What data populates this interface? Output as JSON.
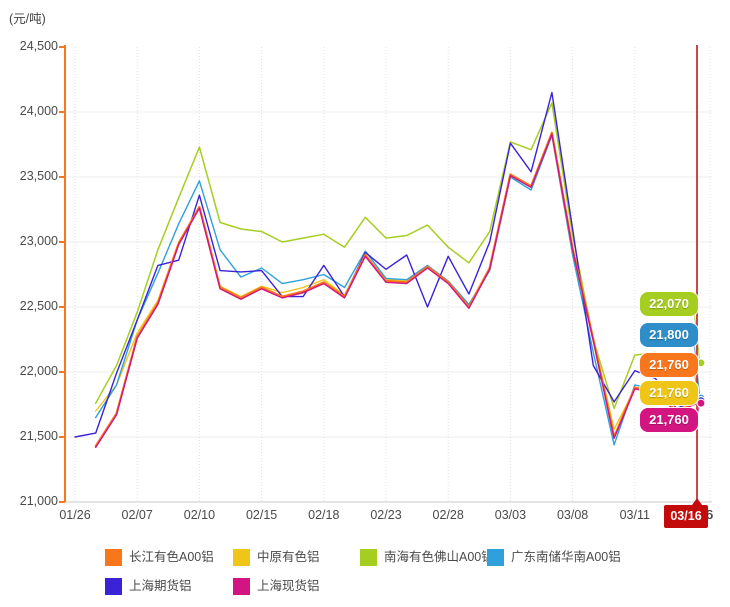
{
  "header": {
    "unit_label": "(元/吨)"
  },
  "chart_data": {
    "type": "line",
    "title": "",
    "ylabel": "元/吨",
    "y_axis": {
      "min": 21000,
      "max": 24500,
      "step": 500,
      "tick_labels": [
        "24,500",
        "24,000",
        "23,500",
        "23,000",
        "22,500",
        "22,000",
        "21,500",
        "21,000"
      ]
    },
    "x_tick_labels": [
      "01/26",
      "02/07",
      "02/10",
      "02/15",
      "02/18",
      "02/23",
      "02/28",
      "03/03",
      "03/08",
      "03/11",
      "03/16"
    ],
    "x": [
      "01/26",
      "01/27",
      "01/28",
      "02/07",
      "02/08",
      "02/09",
      "02/10",
      "02/13",
      "02/14",
      "02/15",
      "02/16",
      "02/17",
      "02/18",
      "02/21",
      "02/22",
      "02/23",
      "02/24",
      "02/27",
      "02/28",
      "03/01",
      "03/02",
      "03/03",
      "03/06",
      "03/07",
      "03/08",
      "03/09",
      "03/10",
      "03/11",
      "03/14",
      "03/15",
      "03/16"
    ],
    "grid": {
      "horizontal": "solid",
      "vertical": "dotted"
    },
    "legend_position": "bottom",
    "series": [
      {
        "key": "nanhai",
        "name": "南海有色佛山A00铝",
        "color": "#A6CE21",
        "width": 1.5,
        "values": [
          null,
          21760,
          22050,
          22460,
          22940,
          23340,
          23730,
          23150,
          23100,
          23080,
          23000,
          23030,
          23060,
          22960,
          23190,
          23030,
          23050,
          23130,
          22960,
          22840,
          23080,
          23770,
          23710,
          24070,
          23050,
          22250,
          21720,
          22130,
          22150,
          21990,
          22070
        ]
      },
      {
        "key": "zhongyuan",
        "name": "中原有色铝",
        "color": "#EFC617",
        "width": 1.4,
        "values": [
          null,
          21700,
          21900,
          22300,
          22550,
          23000,
          23270,
          22660,
          22580,
          22660,
          22610,
          22650,
          22710,
          22590,
          22900,
          22710,
          22700,
          22810,
          22700,
          22510,
          22800,
          23520,
          23430,
          23840,
          22960,
          22260,
          21560,
          21870,
          21850,
          21710,
          21760
        ]
      },
      {
        "key": "guangdong",
        "name": "广东南储华南A00铝",
        "color": "#2FA0DB",
        "width": 1.4,
        "values": [
          null,
          21650,
          21900,
          22400,
          22760,
          23140,
          23470,
          22940,
          22730,
          22800,
          22680,
          22710,
          22750,
          22650,
          22930,
          22720,
          22710,
          22820,
          22700,
          22520,
          22780,
          23500,
          23400,
          23820,
          22900,
          22150,
          21440,
          21900,
          21870,
          21750,
          21800
        ]
      },
      {
        "key": "qihuo",
        "name": "上海期货铝",
        "color": "#3A23D6",
        "width": 1.4,
        "values": [
          21500,
          21530,
          21990,
          22400,
          22820,
          22860,
          23360,
          22780,
          22770,
          22780,
          22580,
          22580,
          22820,
          22580,
          22920,
          22790,
          22900,
          22500,
          22890,
          22600,
          23000,
          23760,
          23540,
          24150,
          23100,
          22050,
          21770,
          22010,
          21950,
          21720,
          21780
        ]
      },
      {
        "key": "changjiang",
        "name": "长江有色A00铝",
        "color": "#F8771C",
        "width": 2.2,
        "values": [
          null,
          21430,
          21680,
          22270,
          22530,
          22990,
          23270,
          22650,
          22570,
          22650,
          22580,
          22620,
          22690,
          22580,
          22900,
          22700,
          22690,
          22810,
          22690,
          22500,
          22800,
          23520,
          23430,
          23840,
          22950,
          22250,
          21500,
          21880,
          21850,
          21700,
          21760
        ]
      },
      {
        "key": "xianhuo",
        "name": "上海现货铝",
        "color": "#D21580",
        "width": 1.4,
        "values": [
          null,
          21420,
          21670,
          22260,
          22520,
          22980,
          23260,
          22640,
          22560,
          22640,
          22570,
          22610,
          22680,
          22570,
          22890,
          22690,
          22680,
          22800,
          22680,
          22490,
          22790,
          23510,
          23420,
          23830,
          22940,
          22240,
          21490,
          21870,
          21840,
          21690,
          21760
        ]
      }
    ],
    "end_value_labels": [
      {
        "series": "nanhai",
        "text": "22,070",
        "color": "#A6CE21"
      },
      {
        "series": "guangdong",
        "text": "21,800",
        "color": "#2E8EC9"
      },
      {
        "series": "changjiang",
        "text": "21,760",
        "color": "#F8771C"
      },
      {
        "series": "zhongyuan",
        "text": "21,760",
        "color": "#EFC617"
      },
      {
        "series": "xianhuo",
        "text": "21,760",
        "color": "#D21580"
      }
    ],
    "end_dot_series": [
      "nanhai",
      "guangdong",
      "qihuo",
      "xianhuo"
    ],
    "crosshair": {
      "x_label": "03/16",
      "line_color": "#b50d0d"
    }
  },
  "tooltip": {
    "text": "03/16"
  },
  "hidden_x_label": "03/16",
  "legend": {
    "items": [
      {
        "label": "长江有色A00铝",
        "color": "#F8771C",
        "row": 0,
        "col": 0
      },
      {
        "label": "中原有色铝",
        "color": "#EFC617",
        "row": 0,
        "col": 1
      },
      {
        "label": "南海有色佛山A00铝",
        "color": "#A6CE21",
        "row": 0,
        "col": 2
      },
      {
        "label": "广东南储华南A00铝",
        "color": "#2FA0DB",
        "row": 0,
        "col": 3
      },
      {
        "label": "上海期货铝",
        "color": "#3A23D6",
        "row": 1,
        "col": 0
      },
      {
        "label": "上海现货铝",
        "color": "#D21580",
        "row": 1,
        "col": 1
      }
    ]
  },
  "colors": {
    "axis": "#F8771C",
    "grid": "#e0e0e0",
    "hgrid": "#ededed",
    "baseline": "#c9c9c9",
    "text": "#4a4a4a"
  }
}
